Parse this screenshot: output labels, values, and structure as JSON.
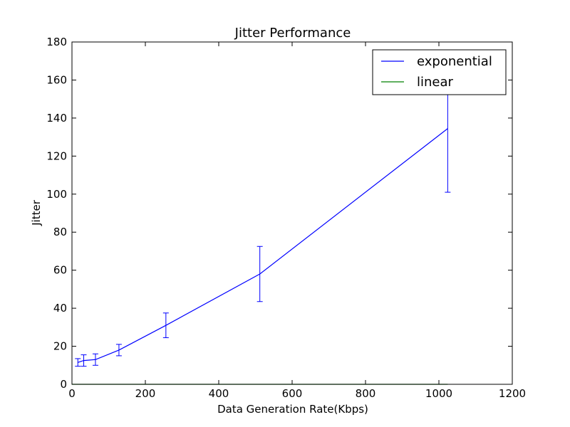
{
  "chart_data": {
    "type": "line",
    "title": "Jitter Performance",
    "xlabel": "Data Generation Rate(Kbps)",
    "ylabel": "Jitter",
    "xlim": [
      0,
      1200
    ],
    "ylim": [
      0,
      180
    ],
    "xticks": [
      0,
      200,
      400,
      600,
      800,
      1000,
      1200
    ],
    "yticks": [
      0,
      20,
      40,
      60,
      80,
      100,
      120,
      140,
      160,
      180
    ],
    "grid": false,
    "legend_position": "top-right",
    "series": [
      {
        "name": "exponential",
        "color": "#0000ff",
        "x": [
          16,
          32,
          64,
          128,
          256,
          512,
          1024
        ],
        "y": [
          11.5,
          12.5,
          13,
          18,
          31,
          58,
          134.5
        ],
        "err": [
          2,
          3,
          3,
          3,
          6.5,
          14.5,
          33.5
        ]
      },
      {
        "name": "linear",
        "color": "#008000",
        "x": [
          0,
          1024
        ],
        "y": [
          0,
          0
        ]
      }
    ]
  }
}
